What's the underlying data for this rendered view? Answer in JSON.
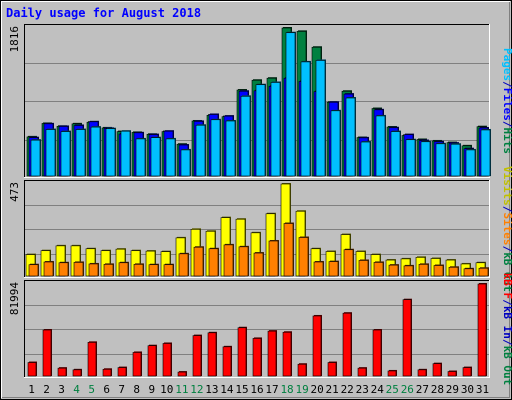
{
  "chart_data": {
    "title": "Daily usage for August 2018",
    "days": [
      1,
      2,
      3,
      4,
      5,
      6,
      7,
      8,
      9,
      10,
      11,
      12,
      13,
      14,
      15,
      16,
      17,
      18,
      19,
      20,
      21,
      22,
      23,
      24,
      25,
      26,
      27,
      28,
      29,
      30,
      31
    ],
    "weekend_days": [
      4,
      5,
      11,
      12,
      18,
      19,
      25,
      26
    ],
    "panels": [
      {
        "type": "bar",
        "scale_max": 1816,
        "axis_label": "1816",
        "series": [
          {
            "name": "Hits",
            "color": "#008040",
            "values": [
              480,
              645,
              610,
              640,
              660,
              590,
              545,
              535,
              512,
              545,
              390,
              675,
              745,
              728,
              1055,
              1175,
              1200,
              1816,
              1775,
              1580,
              905,
              1040,
              472,
              828,
              601,
              497,
              448,
              430,
              410,
              370,
              605
            ]
          },
          {
            "name": "Files",
            "color": "#0000ff",
            "values": [
              470,
              640,
              608,
              620,
              665,
              585,
              515,
              530,
              508,
              550,
              380,
              670,
              755,
              735,
              1040,
              1045,
              1100,
              1200,
              1160,
              1035,
              905,
              1005,
              468,
              812,
              592,
              508,
              435,
              420,
              403,
              335,
              589
            ]
          },
          {
            "name": "Pages",
            "color": "#00c0ff",
            "values": [
              440,
              570,
              545,
              570,
              600,
              580,
              550,
              455,
              470,
              455,
              320,
              623,
              690,
              675,
              978,
              1120,
              1148,
              1758,
              1400,
              1418,
              800,
              957,
              417,
              737,
              545,
              445,
              420,
              395,
              390,
              320,
              565
            ]
          }
        ],
        "legend": [
          "Pages",
          "/",
          "Files",
          "/",
          "Hits"
        ],
        "legend_colors": [
          "#00c0ff",
          "#0000c0",
          "#0000ff",
          "#0000c0",
          "#008040"
        ]
      },
      {
        "type": "bar",
        "scale_max": 473,
        "axis_label": "473",
        "series": [
          {
            "name": "Visits",
            "color": "#ffff00",
            "values": [
              110,
              130,
              155,
              155,
              140,
              130,
              138,
              130,
              128,
              125,
              196,
              240,
              230,
              300,
              292,
              222,
              320,
              473,
              333,
              140,
              126,
              213,
              126,
              110,
              82,
              88,
              96,
              90,
              82,
              62,
              68
            ]
          },
          {
            "name": "Sites",
            "color": "#ff8000",
            "values": [
              58,
              72,
              68,
              70,
              62,
              60,
              68,
              60,
              58,
              58,
              114,
              148,
              140,
              160,
              150,
              118,
              180,
              270,
              198,
              72,
              74,
              135,
              80,
              70,
              56,
              52,
              60,
              54,
              45,
              37,
              40
            ]
          }
        ],
        "legend": [
          "Visits",
          "/",
          "Sites",
          "/",
          "kB Out"
        ],
        "legend_colors": [
          "#c0c000",
          "#0000c0",
          "#ff8000",
          "#0000c0",
          "#008040"
        ]
      },
      {
        "type": "bar",
        "scale_max": 81994,
        "axis_label": "81994",
        "series": [
          {
            "name": "kB F",
            "color": "#ff0000",
            "values": [
              12000,
              41000,
              7000,
              5500,
              30000,
              6000,
              7500,
              21000,
              27000,
              29000,
              3500,
              36000,
              38500,
              26000,
              43000,
              33500,
              40000,
              39000,
              10500,
              53500,
              12000,
              56000,
              7000,
              41000,
              4500,
              68000,
              5500,
              11000,
              4000,
              7500,
              81994
            ]
          }
        ],
        "legend": [
          "kB F",
          "/",
          "kB In",
          "/",
          "kB Out"
        ],
        "legend_colors": [
          "#ff0000",
          "#0000c0",
          "#0000c0",
          "#0000c0",
          "#008040"
        ]
      }
    ]
  }
}
